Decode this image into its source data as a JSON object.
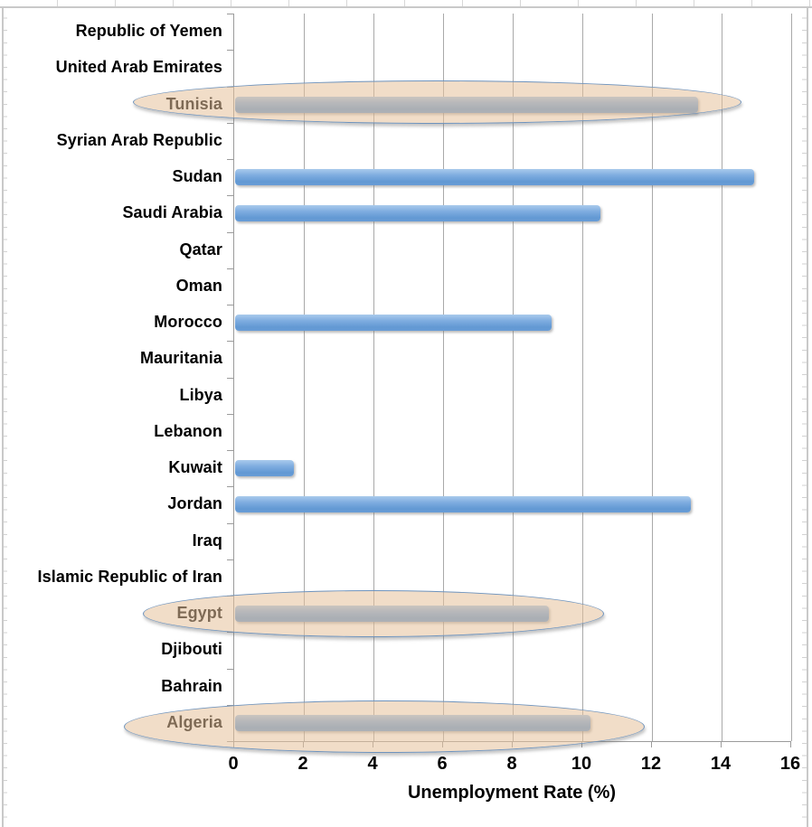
{
  "chart_data": {
    "type": "bar",
    "orientation": "horizontal",
    "title": "",
    "xlabel": "Unemployment Rate (%)",
    "ylabel": "",
    "xlim": [
      0,
      16
    ],
    "xticks": [
      0,
      2,
      4,
      6,
      8,
      10,
      12,
      14,
      16
    ],
    "grid": true,
    "legend": null,
    "rows": [
      {
        "label": "Republic of Yemen",
        "value": null,
        "highlighted": false
      },
      {
        "label": "United Arab Emirates",
        "value": null,
        "highlighted": false
      },
      {
        "label": "Tunisia",
        "value": 13.3,
        "highlighted": true
      },
      {
        "label": "Syrian Arab Republic",
        "value": null,
        "highlighted": false
      },
      {
        "label": "Sudan",
        "value": 14.9,
        "highlighted": false
      },
      {
        "label": "Saudi Arabia",
        "value": 10.5,
        "highlighted": false
      },
      {
        "label": "Qatar",
        "value": null,
        "highlighted": false
      },
      {
        "label": "Oman",
        "value": null,
        "highlighted": false
      },
      {
        "label": "Morocco",
        "value": 9.1,
        "highlighted": false
      },
      {
        "label": "Mauritania",
        "value": null,
        "highlighted": false
      },
      {
        "label": "Libya",
        "value": null,
        "highlighted": false
      },
      {
        "label": "Lebanon",
        "value": null,
        "highlighted": false
      },
      {
        "label": "Kuwait",
        "value": 1.7,
        "highlighted": false
      },
      {
        "label": "Jordan",
        "value": 13.1,
        "highlighted": false
      },
      {
        "label": "Iraq",
        "value": null,
        "highlighted": false
      },
      {
        "label": "Islamic Republic of Iran",
        "value": null,
        "highlighted": false
      },
      {
        "label": "Egypt",
        "value": 9.0,
        "highlighted": true
      },
      {
        "label": "Djibouti",
        "value": null,
        "highlighted": false
      },
      {
        "label": "Bahrain",
        "value": null,
        "highlighted": false
      },
      {
        "label": "Algeria",
        "value": 10.2,
        "highlighted": true
      }
    ]
  },
  "annotations": {
    "circled_countries": [
      "Tunisia",
      "Egypt",
      "Algeria"
    ]
  },
  "colors": {
    "bar_fill": "#6b9dd6",
    "bar_highlight_top": "#a9caec",
    "ellipse_fill": "#f1ddc8",
    "ellipse_border": "#6e93bd",
    "gridline": "#a9a9a9",
    "axis": "#9b9b9b",
    "text": "#000000"
  }
}
